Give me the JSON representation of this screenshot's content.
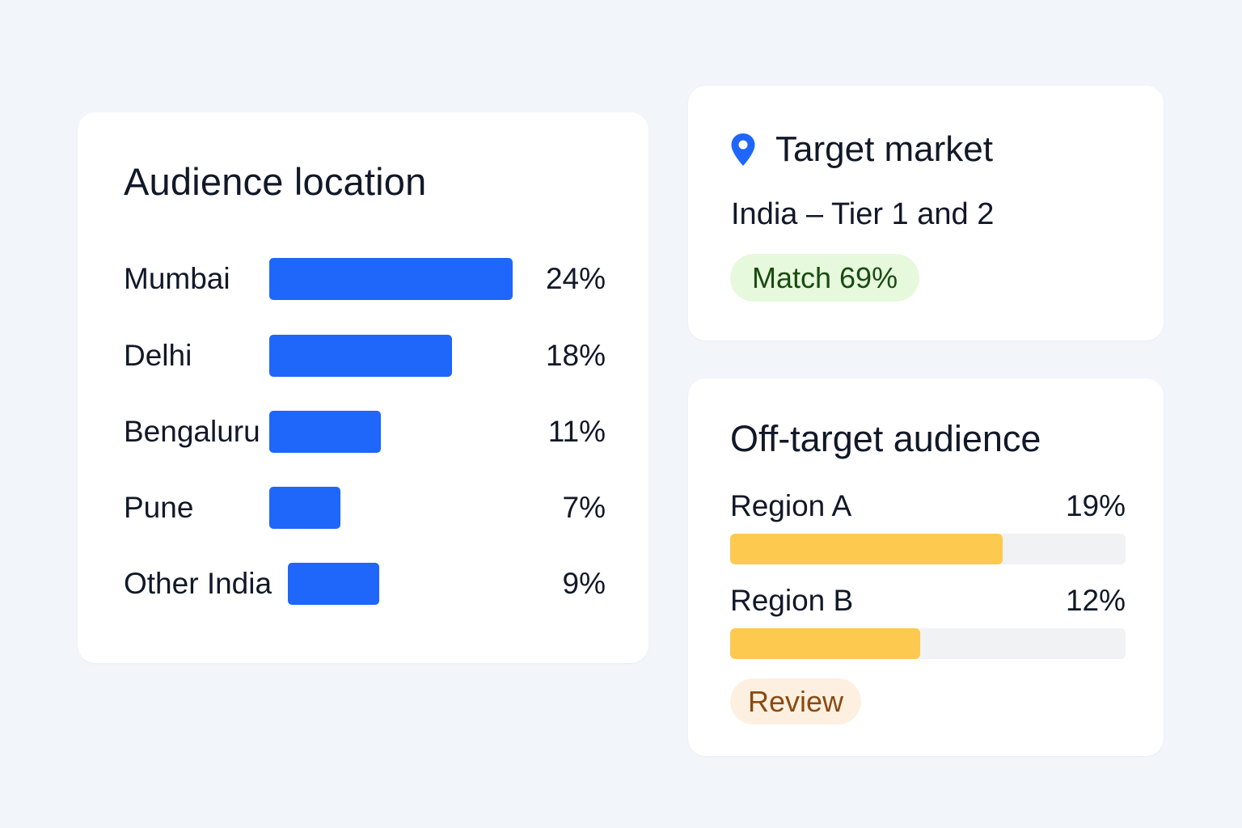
{
  "audience_location": {
    "title": "Audience location",
    "rows": [
      {
        "label": "Mumbai",
        "value": "24%",
        "percent": 24
      },
      {
        "label": "Delhi",
        "value": "18%",
        "percent": 18
      },
      {
        "label": "Bengaluru",
        "value": "11%",
        "percent": 11
      },
      {
        "label": "Pune",
        "value": "7%",
        "percent": 7
      },
      {
        "label": "Other India",
        "value": "9%",
        "percent": 9
      }
    ],
    "bar_color": "#1f66fa"
  },
  "target_market": {
    "title": "Target market",
    "icon": "location-pin-icon",
    "description": "India – Tier 1 and 2",
    "match_badge": "Match 69%",
    "badge_color": "#e6f9dc"
  },
  "off_target": {
    "title": "Off-target audience",
    "regions": [
      {
        "label": "Region A",
        "value": "19%",
        "fill_fraction": 0.69
      },
      {
        "label": "Region B",
        "value": "12%",
        "fill_fraction": 0.48
      }
    ],
    "bar_color": "#fdc94f",
    "review_badge": "Review"
  }
}
